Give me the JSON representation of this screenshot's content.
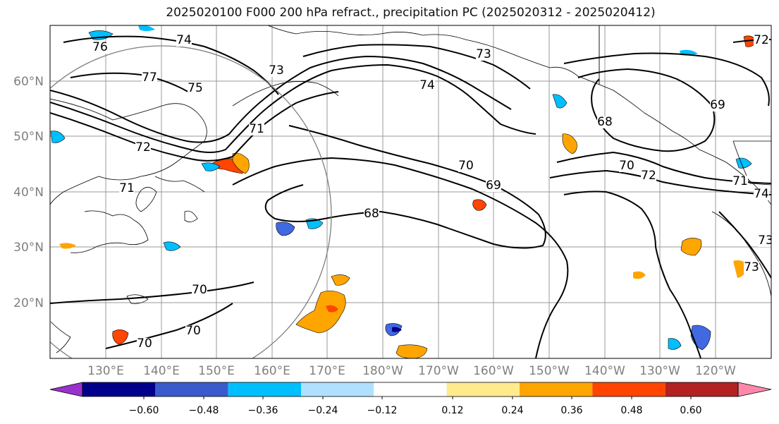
{
  "title": "2025020100 F000 200 hPa refract., precipitation PC (2025020312 - 2025020412)",
  "map": {
    "lon_ticks": [
      "130°E",
      "140°E",
      "150°E",
      "160°E",
      "170°E",
      "180°W",
      "170°W",
      "160°W",
      "150°W",
      "140°W",
      "130°W",
      "120°W"
    ],
    "lat_ticks": [
      "60°N",
      "50°N",
      "40°N",
      "30°N",
      "20°N"
    ],
    "contour_labels": [
      "76",
      "74",
      "73",
      "77",
      "75",
      "71",
      "72",
      "71",
      "74",
      "73",
      "70",
      "69",
      "68",
      "70",
      "72",
      "70",
      "70",
      "70",
      "68",
      "69",
      "71",
      "74",
      "72",
      "73",
      "73"
    ],
    "colors": {
      "land_outline": "#000000",
      "grid": "#9a9a9a",
      "contour": "#000000",
      "circle": "#7f7f7f"
    }
  },
  "colorbar": {
    "labels": [
      "−0.60",
      "−0.48",
      "−0.36",
      "−0.24",
      "−0.12",
      "0.12",
      "0.24",
      "0.36",
      "0.48",
      "0.60"
    ],
    "colors": [
      "#9932cc",
      "#00008b",
      "#3a5bcc",
      "#00bfff",
      "#b0e0ff",
      "#ffffff",
      "#ffeb8c",
      "#ffa500",
      "#ff4500",
      "#b22222",
      "#ff88aa"
    ]
  }
}
